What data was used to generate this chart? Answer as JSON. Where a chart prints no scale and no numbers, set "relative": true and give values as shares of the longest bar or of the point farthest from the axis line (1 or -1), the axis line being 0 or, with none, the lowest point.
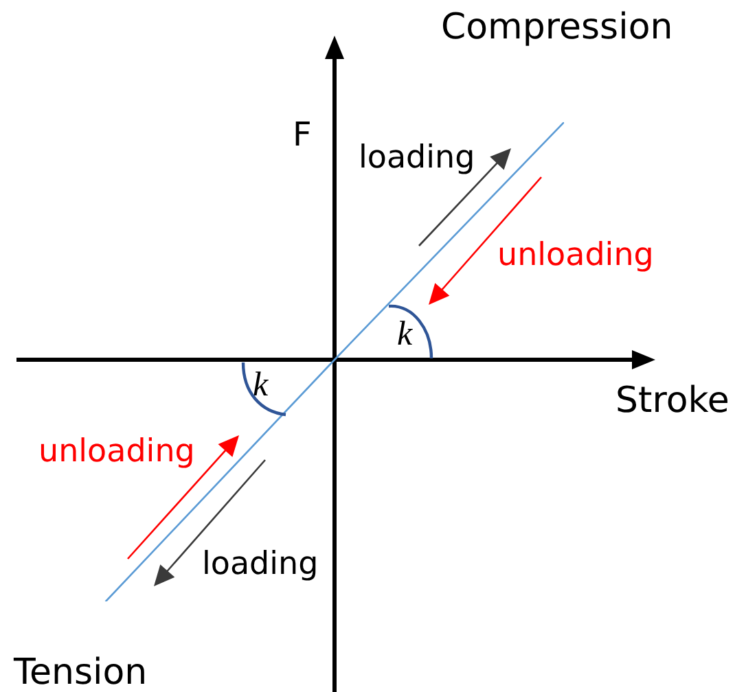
{
  "chart_data": {
    "type": "line",
    "relative": true,
    "categories": [
      null,
      null,
      null
    ],
    "values": [
      -1,
      0,
      0.98
    ],
    "color": "#5b9bd5",
    "marker": "none",
    "xlabel": "Stroke",
    "ylabel": "F",
    "annotations": [
      "Compression",
      "loading",
      "unloading",
      "k",
      "k",
      "unloading",
      "loading",
      "Tension"
    ]
  }
}
